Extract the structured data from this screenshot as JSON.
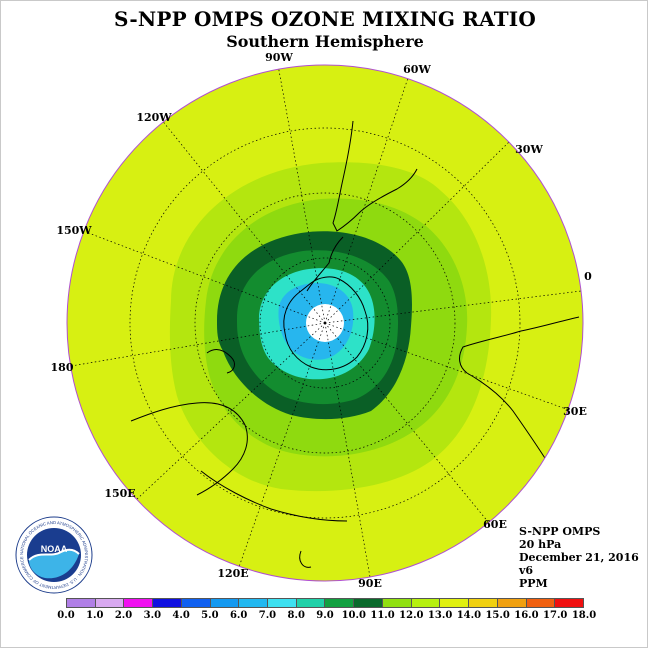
{
  "title": "S-NPP OMPS OZONE MIXING RATIO",
  "subtitle": "Southern Hemisphere",
  "longitude_labels": [
    "90W",
    "60W",
    "30W",
    "0",
    "30E",
    "60E",
    "90E",
    "120E",
    "150E",
    "180",
    "150W",
    "120W"
  ],
  "info": {
    "instrument": "S-NPP OMPS",
    "level": "20 hPa",
    "date": "December 21, 2016",
    "version": "v6",
    "units": "PPM"
  },
  "logo": {
    "text": "NOAA",
    "ring_text": "NATIONAL OCEANIC AND ATMOSPHERIC ADMINISTRATION · U.S. DEPARTMENT OF COMMERCE",
    "icon": "noaa-logo-icon"
  },
  "colorbar": {
    "labels": [
      "0.0",
      "1.0",
      "2.0",
      "3.0",
      "4.0",
      "5.0",
      "6.0",
      "7.0",
      "8.0",
      "9.0",
      "10.0",
      "11.0",
      "12.0",
      "13.0",
      "14.0",
      "15.0",
      "16.0",
      "17.0",
      "18.0"
    ],
    "colors": [
      "#b07fe6",
      "#d8a9f0",
      "#f010f0",
      "#1010e0",
      "#1060f0",
      "#1499f0",
      "#22b8f0",
      "#3de0f0",
      "#20d0a8",
      "#12a040",
      "#0a6a2c",
      "#90e010",
      "#b6f010",
      "#e0f010",
      "#f0d010",
      "#f0a010",
      "#f06010",
      "#f01010",
      "#a06040"
    ]
  },
  "map_colors": {
    "ring_8_9": "#138c2f",
    "ring_9_10": "#0a5f26",
    "band_10_11": "#8fda0f",
    "band_11_12": "#d7f012",
    "ring_7_8": "#2de2c8",
    "ring_6_7": "#27b6ee",
    "center": "#ffffff"
  }
}
